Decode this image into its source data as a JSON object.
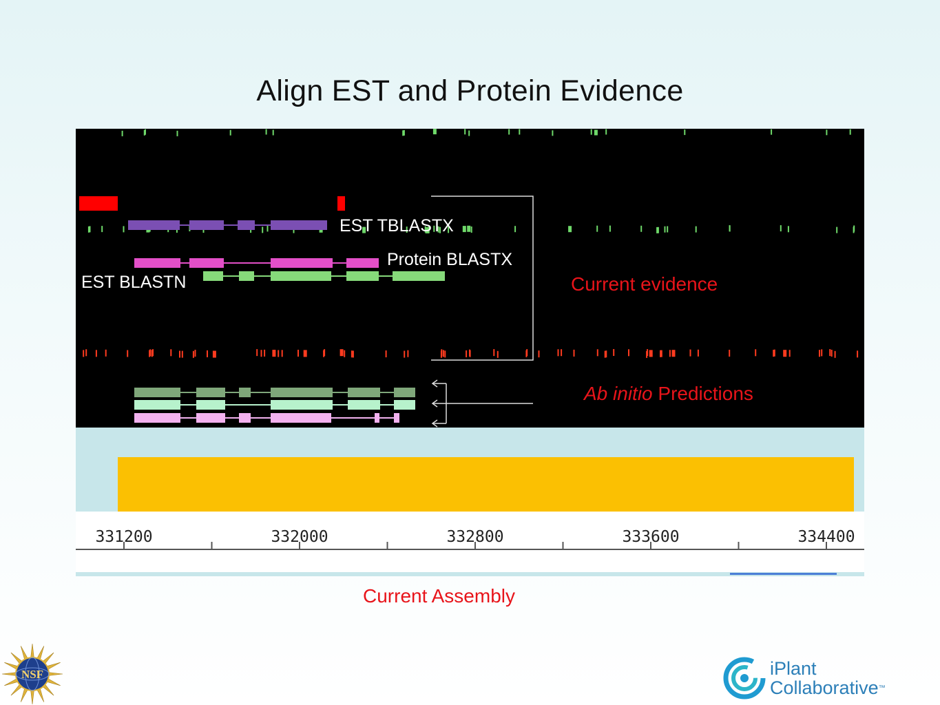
{
  "slide": {
    "title": "Align EST and Protein Evidence",
    "assembly_label": "Current Assembly"
  },
  "tracks": {
    "est_tblastx": "EST TBLASTX",
    "protein_blastx": "Protein BLASTX",
    "est_blastn": "EST BLASTN",
    "evidence_prefix": "",
    "current_evidence": "Current evidence",
    "ab_initio_italic": "Ab initio",
    "ab_initio_rest": " Predictions"
  },
  "ruler": {
    "ticks": [
      "331200",
      "332000",
      "332800",
      "333600",
      "334400"
    ]
  },
  "logos": {
    "nsf": "NSF",
    "iplant_line1": "iPlant",
    "iplant_line2": "Collaborative",
    "tm": "™"
  },
  "colors": {
    "est_tblastx": "#7b4fb3",
    "protein_blastx": "#e34fc8",
    "est_blastn": "#86d97a",
    "pred1": "#7fa77a",
    "pred2": "#b7f2cc",
    "pred3": "#f2b1ef",
    "scaffold": "#fbc002",
    "evidence_red": "#e8141a"
  }
}
